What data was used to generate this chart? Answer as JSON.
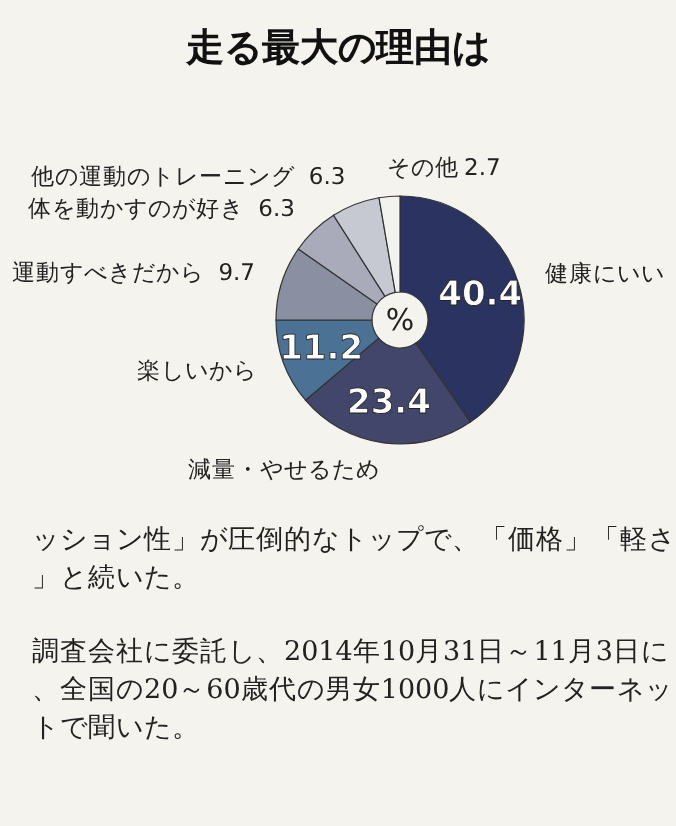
{
  "chart_data": {
    "type": "donut",
    "title": "走る最大の理由は",
    "categories": [
      "健康にいい",
      "減量・やせるため",
      "楽しいから",
      "運動すべきだから",
      "体を動かすのが好き",
      "他の運動のトレーニング",
      "その他"
    ],
    "values": [
      40.4,
      23.4,
      11.2,
      9.7,
      6.3,
      6.3,
      2.7
    ],
    "colors": [
      "#2b3460",
      "#41466a",
      "#4b7294",
      "#8b8fa2",
      "#a9abba",
      "#c6c8d2",
      "#f2f2ee"
    ],
    "data_labels": true,
    "annotations": [
      "%",
      "ッション性」が圧倒的なトップで、「価格」「軽さ」と続いた。",
      "調査会社に委託し、2014年10月31日～11月3日に、全国の20～60歳代の男女1000人にインターネットで聞いた。"
    ]
  }
}
